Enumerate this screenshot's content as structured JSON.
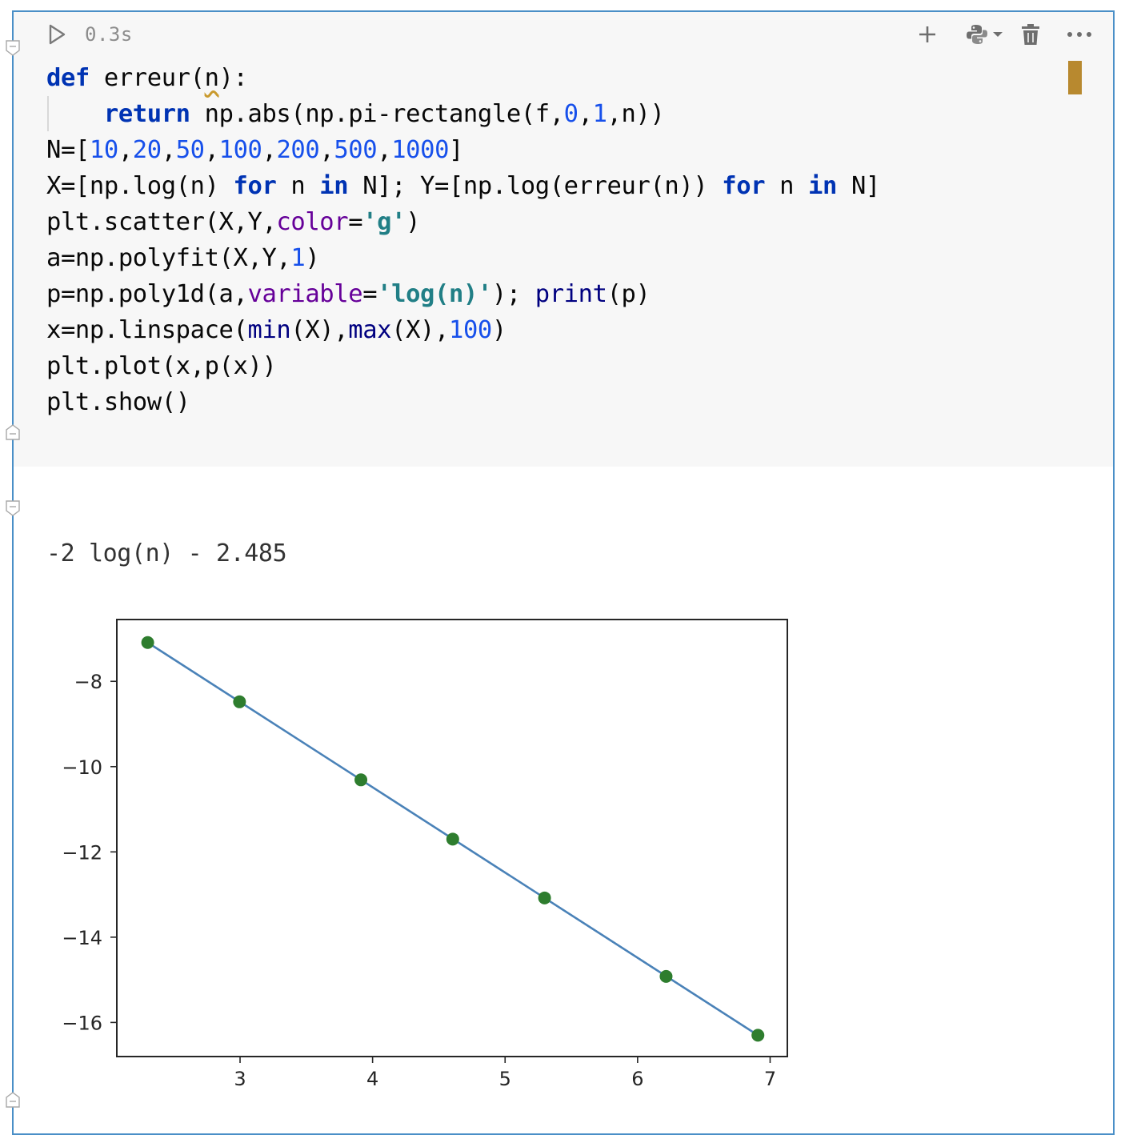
{
  "cell": {
    "exec_time": "0.3s",
    "toolbar": {
      "run_icon": "play-icon",
      "add_icon": "plus-icon",
      "kernel_icon": "python-icon",
      "delete_icon": "trash-icon",
      "more_icon": "more-horizontal-icon"
    },
    "code_lines": [
      [
        {
          "t": "def",
          "c": "kw"
        },
        {
          "t": " erreur("
        },
        {
          "t": "n",
          "c": "squiggle"
        },
        {
          "t": "):"
        }
      ],
      [
        {
          "t": "    "
        },
        {
          "t": "return",
          "c": "kw"
        },
        {
          "t": " np.abs(np.pi-rectangle(f,"
        },
        {
          "t": "0",
          "c": "num"
        },
        {
          "t": ","
        },
        {
          "t": "1",
          "c": "num"
        },
        {
          "t": ",n))"
        }
      ],
      [
        {
          "t": "N=["
        },
        {
          "t": "10",
          "c": "num"
        },
        {
          "t": ","
        },
        {
          "t": "20",
          "c": "num"
        },
        {
          "t": ","
        },
        {
          "t": "50",
          "c": "num"
        },
        {
          "t": ","
        },
        {
          "t": "100",
          "c": "num"
        },
        {
          "t": ","
        },
        {
          "t": "200",
          "c": "num"
        },
        {
          "t": ","
        },
        {
          "t": "500",
          "c": "num"
        },
        {
          "t": ","
        },
        {
          "t": "1000",
          "c": "num"
        },
        {
          "t": "]"
        }
      ],
      [
        {
          "t": "X=[np.log(n) "
        },
        {
          "t": "for",
          "c": "kw"
        },
        {
          "t": " n "
        },
        {
          "t": "in",
          "c": "kw"
        },
        {
          "t": " N]; Y=[np.log(erreur(n)) "
        },
        {
          "t": "for",
          "c": "kw"
        },
        {
          "t": " n "
        },
        {
          "t": "in",
          "c": "kw"
        },
        {
          "t": " N]"
        }
      ],
      [
        {
          "t": "plt.scatter(X,Y,"
        },
        {
          "t": "color",
          "c": "kwarg"
        },
        {
          "t": "="
        },
        {
          "t": "'g'",
          "c": "str"
        },
        {
          "t": ")"
        }
      ],
      [
        {
          "t": "a=np.polyfit(X,Y,"
        },
        {
          "t": "1",
          "c": "num"
        },
        {
          "t": ")"
        }
      ],
      [
        {
          "t": "p=np.poly1d(a,"
        },
        {
          "t": "variable",
          "c": "kwarg"
        },
        {
          "t": "="
        },
        {
          "t": "'log(n)'",
          "c": "str"
        },
        {
          "t": "); "
        },
        {
          "t": "print",
          "c": "builtin"
        },
        {
          "t": "(p)"
        }
      ],
      [
        {
          "t": "x=np.linspace("
        },
        {
          "t": "min",
          "c": "builtin"
        },
        {
          "t": "(X),"
        },
        {
          "t": "max",
          "c": "builtin"
        },
        {
          "t": "(X),"
        },
        {
          "t": "100",
          "c": "num"
        },
        {
          "t": ")"
        }
      ],
      [
        {
          "t": "plt.plot(x,p(x))"
        }
      ],
      [
        {
          "t": "plt.show()"
        }
      ]
    ]
  },
  "output": {
    "text": "-2 log(n) - 2.485"
  },
  "colors": {
    "scatter": "#2e7d2e",
    "line": "#4a82b8",
    "status_marker": "#b8892f",
    "frame": "#4a8fc7"
  },
  "chart_data": {
    "type": "scatter",
    "title": "",
    "xlabel": "",
    "ylabel": "",
    "xlim": [
      2.07,
      7.13
    ],
    "ylim": [
      -16.8,
      -6.55
    ],
    "xticks": [
      3,
      4,
      5,
      6,
      7
    ],
    "yticks": [
      -8,
      -10,
      -12,
      -14,
      -16
    ],
    "series": [
      {
        "type": "scatter",
        "x": [
          2.303,
          2.996,
          3.912,
          4.605,
          5.298,
          6.215,
          6.908
        ],
        "y": [
          -7.09,
          -8.48,
          -10.31,
          -11.7,
          -13.08,
          -14.92,
          -16.3
        ]
      },
      {
        "type": "line",
        "x": [
          2.303,
          6.908
        ],
        "y": [
          -7.09,
          -16.3
        ]
      }
    ],
    "grid": false
  }
}
